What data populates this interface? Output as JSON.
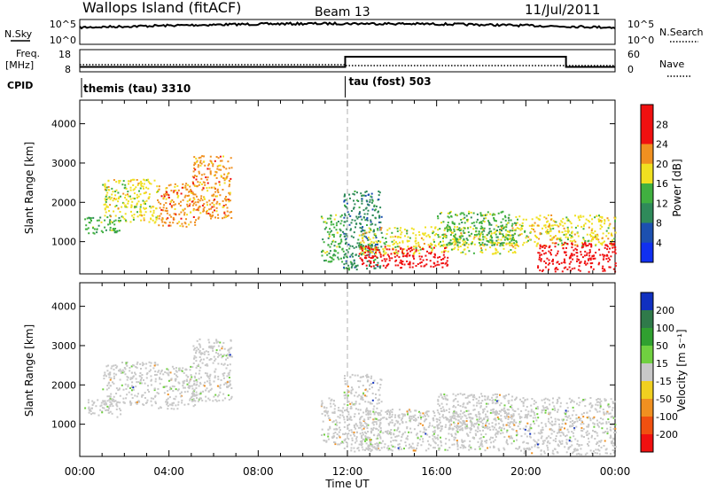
{
  "header": {
    "station": "Wallops Island (fitACF)",
    "beam": "Beam 13",
    "date": "11/Jul/2011"
  },
  "nsky_panel": {
    "left_label": "N.Sky",
    "left_ticks": [
      "10^5",
      "10^0"
    ],
    "right_label": "N.Search",
    "right_ticks": [
      "10^5",
      "10^0"
    ]
  },
  "freq_panel": {
    "left_label_line1": "Freq.",
    "left_label_line2": "[MHz]",
    "left_ticks": [
      "18",
      "8"
    ],
    "right_label": "Nave",
    "right_ticks": [
      "60",
      "0"
    ],
    "freq_step_hour": 11.9,
    "freq_before_mhz": 10.2,
    "freq_after_mhz": 14.8,
    "freq_end_hour": 21.8
  },
  "cpid_panel": {
    "label": "CPID",
    "segments": [
      {
        "start_hour": 0,
        "text": "themis (tau) 3310"
      },
      {
        "start_hour": 11.9,
        "text": "tau (fost) 503"
      }
    ]
  },
  "time_axis": {
    "label": "Time UT",
    "ticks": [
      "00:00",
      "04:00",
      "08:00",
      "12:00",
      "16:00",
      "20:00",
      "00:00"
    ],
    "tick_hours": [
      0,
      4,
      8,
      12,
      16,
      20,
      24
    ],
    "range_hours": [
      0,
      24
    ]
  },
  "chart_data": [
    {
      "type": "heatmap",
      "quantity": "power",
      "ylabel": "Slant Range [km]",
      "yticks": [
        1000,
        2000,
        3000,
        4000
      ],
      "ylim": [
        180,
        4600
      ],
      "colorbar_label": "Power [dB]",
      "colorbar_levels": [
        4,
        8,
        12,
        16,
        20,
        24,
        28
      ],
      "colorbar_colors": [
        "#1030f0",
        "#1c50b0",
        "#2f8a5a",
        "#40b040",
        "#f0e020",
        "#f09020",
        "#f01010",
        "#f01010"
      ],
      "regions": [
        {
          "t0": 0.2,
          "t1": 1.8,
          "r0": 1200,
          "r1": 1650,
          "level": 12
        },
        {
          "t0": 1.0,
          "t1": 3.5,
          "r0": 1500,
          "r1": 2600,
          "level": 16
        },
        {
          "t0": 3.5,
          "t1": 5.2,
          "r0": 1400,
          "r1": 2500,
          "level": 20
        },
        {
          "t0": 5.0,
          "t1": 6.8,
          "r0": 1600,
          "r1": 3200,
          "level": 20
        },
        {
          "t0": 10.8,
          "t1": 11.8,
          "r0": 500,
          "r1": 1700,
          "level": 12
        },
        {
          "t0": 11.8,
          "t1": 13.5,
          "r0": 300,
          "r1": 2300,
          "level": 8
        },
        {
          "t0": 12.5,
          "t1": 19.5,
          "r0": 700,
          "r1": 1400,
          "level": 16
        },
        {
          "t0": 12.5,
          "t1": 16.5,
          "r0": 350,
          "r1": 900,
          "level": 28
        },
        {
          "t0": 16.0,
          "t1": 19.5,
          "r0": 900,
          "r1": 1800,
          "level": 12
        },
        {
          "t0": 19.5,
          "t1": 24.0,
          "r0": 900,
          "r1": 1700,
          "level": 16
        },
        {
          "t0": 20.5,
          "t1": 24.0,
          "r0": 250,
          "r1": 1000,
          "level": 28
        }
      ]
    },
    {
      "type": "heatmap",
      "quantity": "velocity",
      "ylabel": "Slant Range [km]",
      "yticks": [
        1000,
        2000,
        3000,
        4000
      ],
      "ylim": [
        180,
        4600
      ],
      "colorbar_label": "Velocity [m s⁻¹]",
      "colorbar_levels": [
        200,
        100,
        50,
        15,
        -15,
        -50,
        -100,
        -200
      ],
      "colorbar_colors": [
        "#1030c0",
        "#2f7a4a",
        "#30a030",
        "#70d040",
        "#c8c8c8",
        "#f0d020",
        "#f09020",
        "#f05010",
        "#f01010"
      ],
      "regions": [
        {
          "t0": 0.2,
          "t1": 1.8,
          "r0": 1200,
          "r1": 1650,
          "level": -15
        },
        {
          "t0": 1.0,
          "t1": 3.5,
          "r0": 1500,
          "r1": 2600,
          "level": -15
        },
        {
          "t0": 3.5,
          "t1": 5.2,
          "r0": 1400,
          "r1": 2500,
          "level": -15
        },
        {
          "t0": 5.0,
          "t1": 6.8,
          "r0": 1600,
          "r1": 3200,
          "level": -15
        },
        {
          "t0": 10.8,
          "t1": 11.8,
          "r0": 500,
          "r1": 1700,
          "level": -15
        },
        {
          "t0": 11.8,
          "t1": 13.5,
          "r0": 300,
          "r1": 2300,
          "level": -15
        },
        {
          "t0": 12.5,
          "t1": 19.5,
          "r0": 350,
          "r1": 1400,
          "level": -15
        },
        {
          "t0": 16.0,
          "t1": 19.5,
          "r0": 900,
          "r1": 1800,
          "level": -15
        },
        {
          "t0": 19.5,
          "t1": 24.0,
          "r0": 250,
          "r1": 1700,
          "level": -15
        }
      ]
    }
  ]
}
